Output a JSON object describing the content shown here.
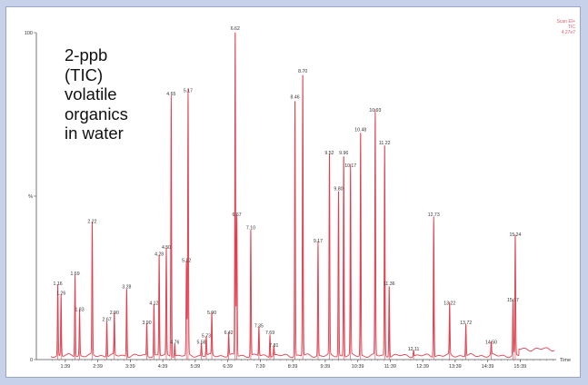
{
  "caption": {
    "lines": [
      "2-ppb",
      "(TIC)",
      "volatile",
      "organics",
      "in water"
    ]
  },
  "corner_label": {
    "line1": "Scan EI+",
    "line2": "TIC",
    "line3": "4.27e7"
  },
  "colors": {
    "background": "#c8d1ea",
    "panel": "#ffffff",
    "trace": "#e0404f",
    "axis": "#555555",
    "peak_label": "#333333"
  },
  "chart_data": {
    "type": "line",
    "title": "",
    "xlabel": "Time",
    "ylabel": "%",
    "xlim": [
      0.5,
      16.5
    ],
    "ylim": [
      0,
      100
    ],
    "y_ticks": [
      {
        "value": 0,
        "label": "0"
      },
      {
        "value": 50,
        "label": "%"
      },
      {
        "value": 100,
        "label": "100"
      }
    ],
    "x_ticks": [
      {
        "value": 1.39,
        "label": "1:39"
      },
      {
        "value": 2.39,
        "label": "2:39"
      },
      {
        "value": 3.39,
        "label": "3:39"
      },
      {
        "value": 4.39,
        "label": "4:39"
      },
      {
        "value": 5.39,
        "label": "5:39"
      },
      {
        "value": 6.39,
        "label": "6:39"
      },
      {
        "value": 7.39,
        "label": "7:39"
      },
      {
        "value": 8.39,
        "label": "8:39"
      },
      {
        "value": 9.39,
        "label": "9:39"
      },
      {
        "value": 10.39,
        "label": "10:39"
      },
      {
        "value": 11.39,
        "label": "11:39"
      },
      {
        "value": 12.39,
        "label": "12:39"
      },
      {
        "value": 13.39,
        "label": "13:39"
      },
      {
        "value": 14.39,
        "label": "14:39"
      },
      {
        "value": 15.39,
        "label": "15:39"
      }
    ],
    "peaks": [
      {
        "rt": 1.16,
        "label": "1.16",
        "height": 22
      },
      {
        "rt": 1.26,
        "label": "1.26",
        "height": 19
      },
      {
        "rt": 1.69,
        "label": "1.69",
        "height": 25
      },
      {
        "rt": 1.83,
        "label": "1.83",
        "height": 14
      },
      {
        "rt": 2.22,
        "label": "2.22",
        "height": 41
      },
      {
        "rt": 2.67,
        "label": "2.67",
        "height": 11
      },
      {
        "rt": 2.9,
        "label": "2.90",
        "height": 13
      },
      {
        "rt": 3.28,
        "label": "3.28",
        "height": 21
      },
      {
        "rt": 3.9,
        "label": "3.90",
        "height": 10
      },
      {
        "rt": 4.12,
        "label": "4.12",
        "height": 16
      },
      {
        "rt": 4.28,
        "label": "4.28",
        "height": 31
      },
      {
        "rt": 4.5,
        "label": "4.50",
        "height": 33
      },
      {
        "rt": 4.65,
        "label": "4.65",
        "height": 80
      },
      {
        "rt": 4.76,
        "label": "4.76",
        "height": 4
      },
      {
        "rt": 5.12,
        "label": "5.12",
        "height": 29
      },
      {
        "rt": 5.17,
        "label": "5.17",
        "height": 81
      },
      {
        "rt": 5.58,
        "label": "5.58",
        "height": 4
      },
      {
        "rt": 5.9,
        "label": "5.90",
        "height": 13
      },
      {
        "rt": 5.73,
        "label": "5.73",
        "height": 6
      },
      {
        "rt": 6.42,
        "label": "6.42",
        "height": 7
      },
      {
        "rt": 6.62,
        "label": "6.62",
        "height": 100
      },
      {
        "rt": 6.67,
        "label": "6.67",
        "height": 43
      },
      {
        "rt": 7.1,
        "label": "7.10",
        "height": 39
      },
      {
        "rt": 7.35,
        "label": "7.35",
        "height": 9
      },
      {
        "rt": 7.69,
        "label": "7.69",
        "height": 7
      },
      {
        "rt": 7.81,
        "label": "7.81",
        "height": 3
      },
      {
        "rt": 8.46,
        "label": "8.46",
        "height": 79
      },
      {
        "rt": 8.7,
        "label": "8.70",
        "height": 87
      },
      {
        "rt": 9.17,
        "label": "9.17",
        "height": 35
      },
      {
        "rt": 9.52,
        "label": "9.52",
        "height": 62
      },
      {
        "rt": 9.8,
        "label": "9.80",
        "height": 51
      },
      {
        "rt": 9.96,
        "label": "9.96",
        "height": 62
      },
      {
        "rt": 10.17,
        "label": "10.17",
        "height": 58
      },
      {
        "rt": 10.48,
        "label": "10.48",
        "height": 69
      },
      {
        "rt": 10.93,
        "label": "10.93",
        "height": 75
      },
      {
        "rt": 11.22,
        "label": "11.22",
        "height": 65
      },
      {
        "rt": 11.36,
        "label": "11.36",
        "height": 22
      },
      {
        "rt": 12.11,
        "label": "12.11",
        "height": 2
      },
      {
        "rt": 12.73,
        "label": "12.73",
        "height": 43
      },
      {
        "rt": 13.22,
        "label": "13.22",
        "height": 16
      },
      {
        "rt": 13.72,
        "label": "13.72",
        "height": 10
      },
      {
        "rt": 14.5,
        "label": "14.50",
        "height": 4
      },
      {
        "rt": 15.17,
        "label": "15.17",
        "height": 17
      },
      {
        "rt": 15.24,
        "label": "15.24",
        "height": 37
      }
    ]
  }
}
